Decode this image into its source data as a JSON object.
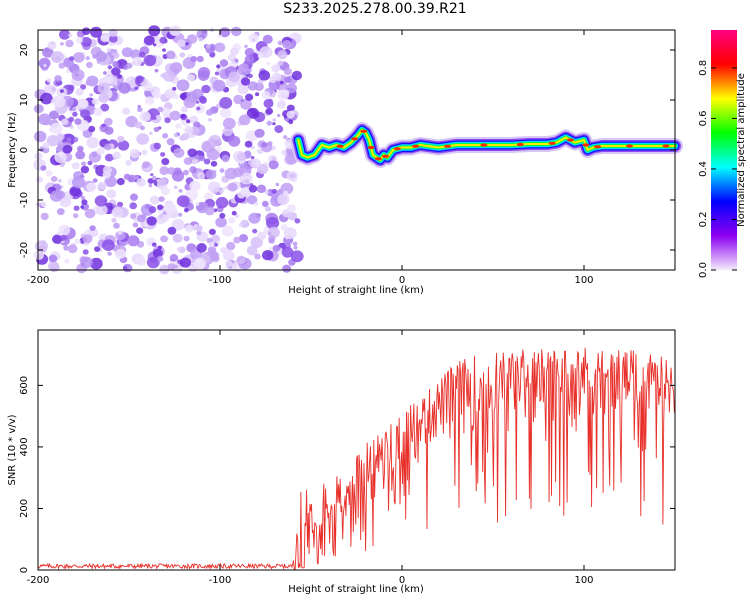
{
  "title": "S233.2025.278.00.39.R21",
  "colorbar": {
    "label": "Normalized spectral amplitude",
    "ticks": [
      0.0,
      0.2,
      0.4,
      0.6,
      0.8
    ],
    "tick_labels": [
      "0.0",
      "0.2",
      "0.4",
      "0.6",
      "0.8"
    ],
    "range": [
      0,
      0.95
    ],
    "colors": [
      "#f4ecfc",
      "#8c00f0",
      "#0000ff",
      "#00ffff",
      "#00ff00",
      "#ffff00",
      "#ff0000",
      "#ff0080"
    ]
  },
  "chart_data": [
    {
      "type": "heatmap",
      "title": "S233.2025.278.00.39.R21",
      "xlabel": "Height of straight line (km)",
      "ylabel": "Frequency (Hz)",
      "xlim": [
        -200,
        150
      ],
      "ylim": [
        -24,
        24
      ],
      "xticks": [
        -200,
        -100,
        0,
        100
      ],
      "xtick_labels": [
        "-200",
        "-100",
        "0",
        "100"
      ],
      "yticks": [
        -20,
        -10,
        0,
        10,
        20
      ],
      "ytick_labels": [
        "-20",
        "-10",
        "0",
        "10",
        "20"
      ],
      "noise_region_x": [
        -200,
        -57
      ],
      "signal_track": {
        "x": [
          -57,
          -55,
          -52,
          -48,
          -44,
          -40,
          -36,
          -32,
          -28,
          -24,
          -22,
          -20,
          -18,
          -16,
          -14,
          -12,
          -10,
          -8,
          -5,
          0,
          5,
          10,
          20,
          30,
          40,
          50,
          60,
          70,
          80,
          85,
          90,
          95,
          100,
          102,
          105,
          110,
          120,
          130,
          140,
          150
        ],
        "y": [
          2,
          -1,
          -1.5,
          -1,
          1,
          0.5,
          1,
          0.5,
          1.5,
          3,
          4,
          3.5,
          2,
          -1,
          -1.5,
          -2,
          -1,
          -1.5,
          0,
          0.5,
          0.5,
          1,
          0.5,
          1,
          1,
          1,
          1,
          1.2,
          1.2,
          1.5,
          2.5,
          1.5,
          2,
          0,
          0.5,
          0.8,
          0.8,
          0.8,
          0.8,
          0.8
        ]
      }
    },
    {
      "type": "line",
      "xlabel": "Height of straight line (km)",
      "ylabel": "SNR (10 * v/v)",
      "xlim": [
        -200,
        150
      ],
      "ylim": [
        0,
        780
      ],
      "xticks": [
        -200,
        -100,
        0,
        100
      ],
      "xtick_labels": [
        "-200",
        "-100",
        "0",
        "100"
      ],
      "yticks": [
        0,
        200,
        400,
        600
      ],
      "ytick_labels": [
        "0",
        "200",
        "400",
        "600"
      ],
      "series": [
        {
          "name": "SNR",
          "color": "#e8302a",
          "envelope_x": [
            -200,
            -60,
            -55,
            -50,
            -40,
            -30,
            -20,
            -10,
            0,
            10,
            20,
            30,
            40,
            50,
            60,
            80,
            100,
            120,
            140,
            150
          ],
          "envelope_upper": [
            20,
            20,
            320,
            250,
            300,
            320,
            420,
            470,
            520,
            560,
            620,
            680,
            700,
            710,
            720,
            720,
            730,
            720,
            700,
            680
          ],
          "envelope_lower": [
            5,
            5,
            10,
            40,
            80,
            140,
            200,
            260,
            320,
            360,
            400,
            420,
            440,
            450,
            460,
            480,
            480,
            480,
            480,
            470
          ]
        }
      ]
    }
  ]
}
